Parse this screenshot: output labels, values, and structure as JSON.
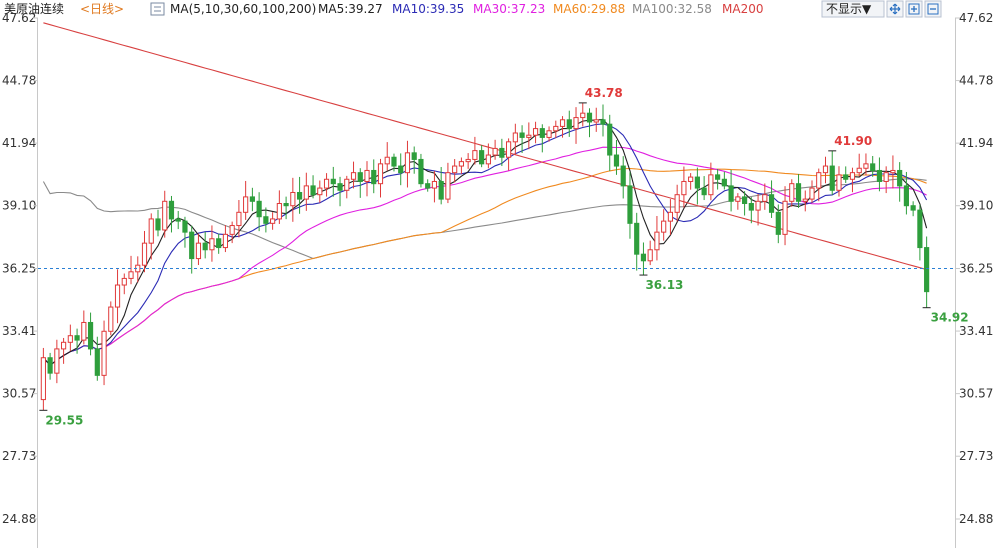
{
  "header": {
    "instrument": "美原油连续",
    "period": "<日线>",
    "ma_params": "MA(5,10,30,60,100,200)",
    "ma_values": [
      {
        "label": "MA5:39.27",
        "color": "#222222"
      },
      {
        "label": "MA10:39.35",
        "color": "#2b2bb5"
      },
      {
        "label": "MA30:37.23",
        "color": "#e020e0"
      },
      {
        "label": "MA60:29.88",
        "color": "#f08a20"
      },
      {
        "label": "MA100:32.58",
        "color": "#8a8a8a"
      },
      {
        "label": "MA200",
        "color": "#d84040"
      }
    ]
  },
  "toolbar": {
    "hide_label": "不显示▼",
    "icons": [
      "move-icon",
      "zoom-in-icon",
      "zoom-out-icon"
    ]
  },
  "chart_data": {
    "type": "candlestick",
    "y_ticks": [
      "47.62",
      "44.78",
      "41.94",
      "39.10",
      "36.25",
      "33.41",
      "30.57",
      "27.73",
      "24.88"
    ],
    "ylim": [
      24.88,
      47.62
    ],
    "current_price_line": 36.25,
    "colors": {
      "up": "#e03a3a",
      "down": "#2e9e3c",
      "marker": "#222222",
      "price_line": "#2a7fd4"
    },
    "annotations": [
      {
        "label": "29.55",
        "kind": "low",
        "color": "#3aa040"
      },
      {
        "label": "43.78",
        "kind": "high",
        "color": "#e03a3a"
      },
      {
        "label": "36.13",
        "kind": "low",
        "color": "#3aa040"
      },
      {
        "label": "41.90",
        "kind": "high",
        "color": "#e03a3a"
      },
      {
        "label": "34.92",
        "kind": "low",
        "color": "#3aa040"
      }
    ],
    "closes": [
      32.2,
      31.5,
      32.6,
      32.9,
      33.2,
      33.0,
      33.8,
      32.6,
      31.4,
      33.4,
      34.5,
      35.5,
      35.8,
      36.1,
      36.4,
      37.4,
      38.5,
      38.0,
      39.3,
      38.5,
      38.4,
      37.9,
      36.7,
      37.4,
      37.1,
      37.6,
      37.2,
      37.8,
      38.2,
      38.8,
      39.5,
      39.3,
      38.6,
      38.3,
      38.5,
      39.2,
      39.1,
      39.7,
      39.4,
      40.0,
      39.6,
      39.9,
      40.3,
      40.1,
      39.8,
      40.3,
      40.6,
      40.2,
      40.7,
      40.1,
      41.0,
      41.3,
      40.9,
      40.6,
      41.5,
      41.2,
      40.1,
      39.9,
      40.2,
      39.4,
      40.6,
      40.9,
      41.1,
      41.2,
      41.6,
      41.0,
      41.4,
      41.7,
      41.3,
      42.0,
      42.4,
      42.2,
      42.3,
      42.6,
      42.2,
      42.5,
      42.7,
      43.0,
      42.6,
      43.1,
      43.3,
      42.9,
      43.0,
      42.8,
      41.4,
      40.9,
      40.0,
      38.3,
      36.9,
      36.6,
      37.1,
      37.9,
      38.4,
      38.8,
      39.6,
      40.2,
      40.4,
      39.9,
      39.6,
      40.5,
      40.3,
      40.0,
      39.3,
      39.5,
      39.2,
      38.9,
      39.3,
      39.6,
      38.8,
      37.8,
      39.3,
      40.1,
      39.3,
      39.4,
      39.9,
      40.6,
      40.9,
      39.8,
      40.5,
      40.3,
      40.6,
      40.8,
      41.0,
      40.7,
      40.2,
      40.6,
      40.7,
      40.0,
      39.1,
      38.9,
      37.2,
      35.2
    ]
  }
}
